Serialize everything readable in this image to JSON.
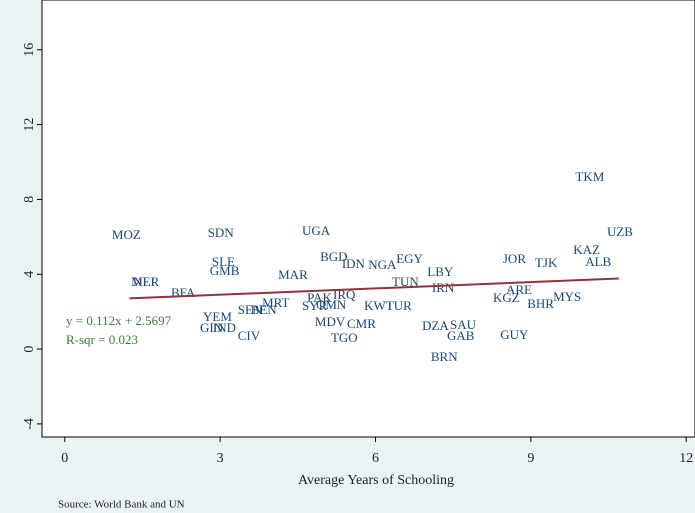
{
  "chart_data": {
    "type": "scatter",
    "x_label": "Average Years of Schooling",
    "source": "Source: World Bank and UN",
    "annotations": [
      "y = 0.112x + 2.5697",
      "R-sqr = 0.023"
    ],
    "color": "#1a476f",
    "fit_color": "#90353b",
    "annotation_color": "#3b7d3b",
    "grid": false,
    "xlim": [
      -0.44,
      12.17
    ],
    "ylim": [
      -4.7,
      18.66
    ],
    "xticks": [
      0,
      3,
      6,
      9,
      12
    ],
    "yticks": [
      -4,
      0,
      4,
      8,
      12,
      16
    ],
    "fit_line": {
      "x": [
        1.25,
        10.7
      ],
      "y": [
        2.71,
        3.77
      ]
    },
    "labels": [
      "MOZ",
      "SDN",
      "UGA",
      "TKM",
      "UZB",
      "KAZ",
      "ALB",
      "JOR",
      "TJK",
      "BGD",
      "IDN",
      "NGA",
      "EGY",
      "LBY",
      "TUN",
      "IRN",
      "SLE",
      "GMB",
      "MAR",
      "MLI",
      "NER",
      "BFA",
      "ARE",
      "KGZ",
      "BHR",
      "MYS",
      "PAK",
      "IRQ",
      "SYR",
      "OMN",
      "KWT",
      "TUR",
      "MRT",
      "SEN",
      "BEN",
      "YEM",
      "GIN",
      "IND",
      "CIV",
      "MDV",
      "CMR",
      "TGO",
      "DZA",
      "SAU",
      "GAB",
      "GUY",
      "BRN"
    ],
    "x": [
      0.91,
      2.76,
      4.58,
      9.86,
      10.47,
      9.82,
      10.05,
      8.46,
      9.08,
      4.93,
      5.35,
      5.86,
      6.4,
      7.0,
      6.32,
      7.09,
      2.84,
      2.8,
      4.12,
      1.28,
      1.32,
      2.05,
      8.52,
      8.27,
      8.93,
      9.43,
      4.68,
      5.18,
      4.58,
      4.85,
      5.78,
      6.2,
      3.81,
      3.34,
      3.59,
      2.67,
      2.61,
      2.86,
      3.34,
      4.83,
      5.45,
      5.14,
      6.9,
      7.44,
      7.38,
      8.41,
      7.07
    ],
    "y": [
      6.04,
      6.15,
      6.26,
      9.14,
      6.2,
      5.24,
      4.6,
      4.76,
      4.55,
      4.87,
      4.49,
      4.44,
      4.76,
      4.06,
      3.53,
      3.21,
      4.6,
      4.12,
      3.9,
      3.53,
      3.53,
      2.94,
      3.1,
      2.67,
      2.35,
      2.73,
      2.67,
      2.83,
      2.25,
      2.3,
      2.25,
      2.25,
      2.41,
      2.03,
      2.03,
      1.66,
      1.07,
      1.07,
      0.64,
      1.39,
      1.28,
      0.53,
      1.18,
      1.23,
      0.64,
      0.7,
      -0.48
    ]
  }
}
